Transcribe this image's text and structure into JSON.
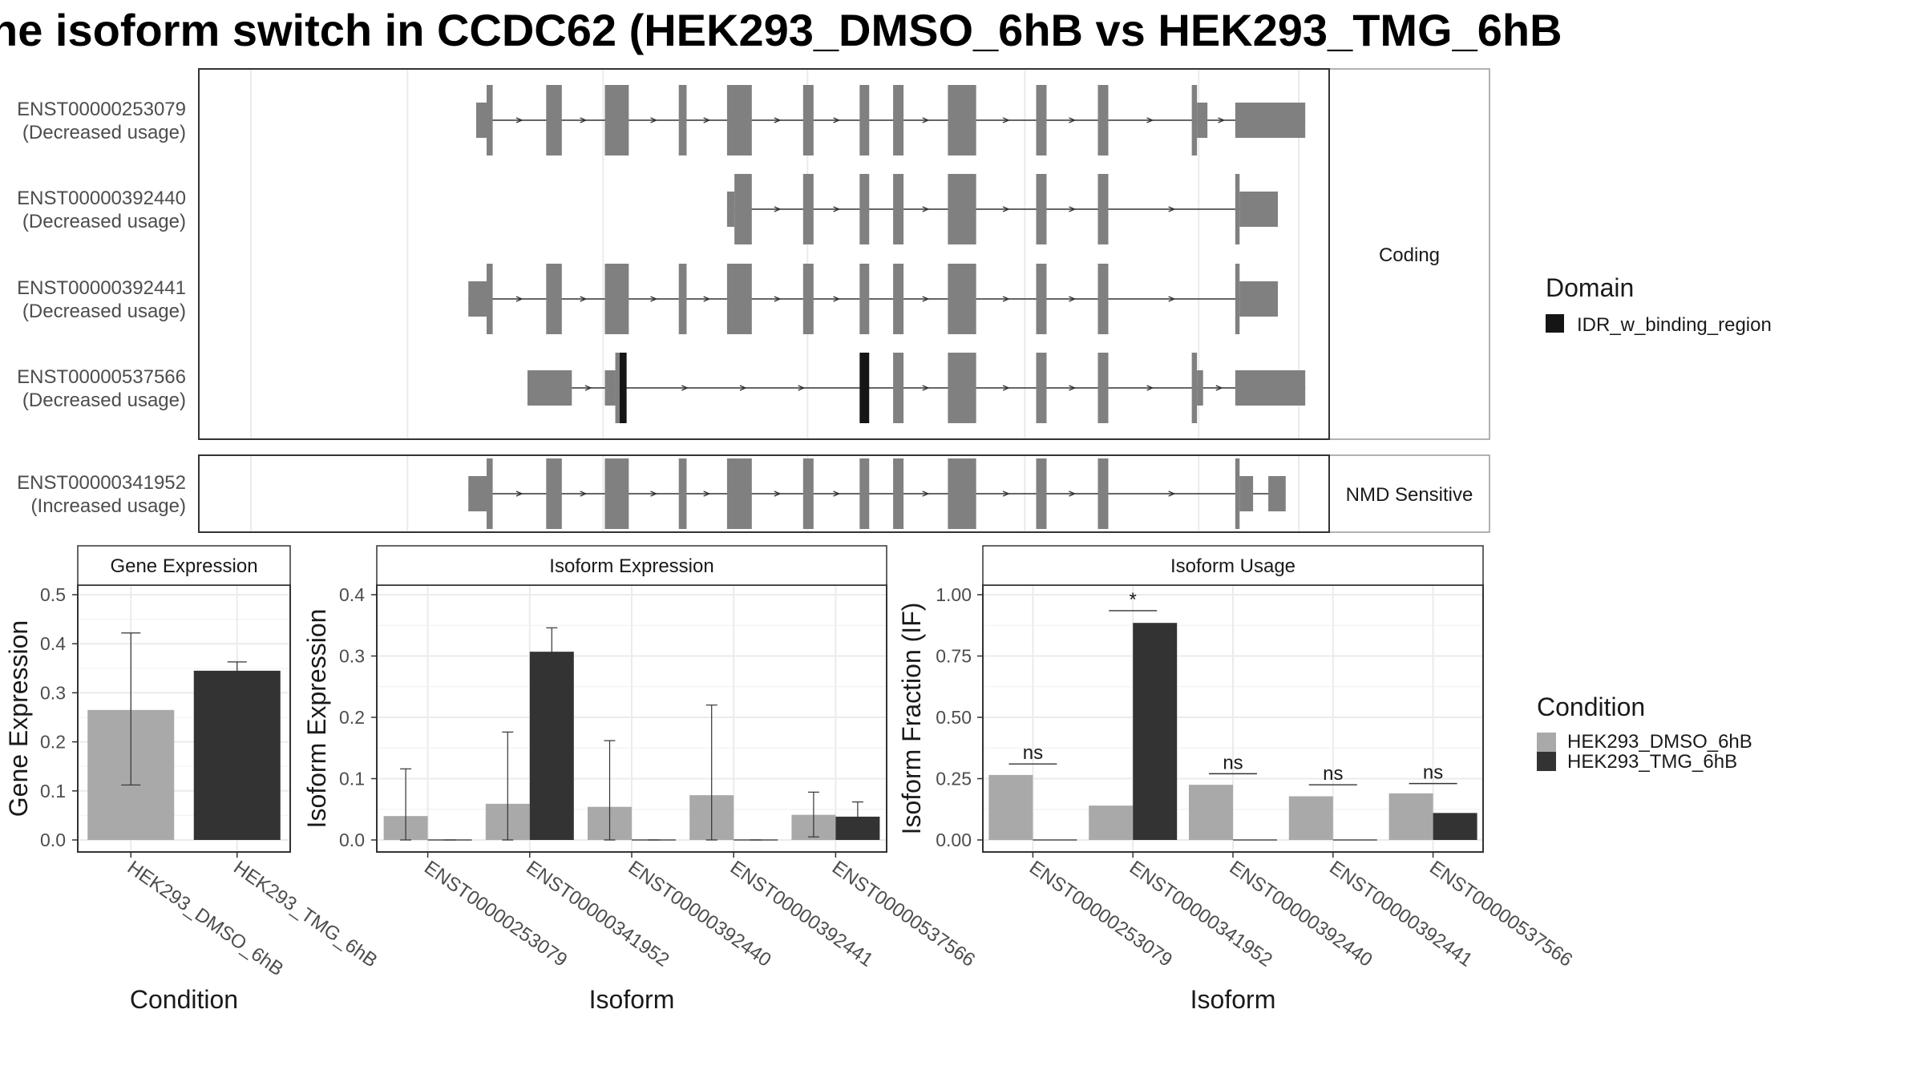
{
  "title": "he isoform switch in CCDC62 (HEK293_DMSO_6hB vs HEK293_TMG_6hB",
  "colors": {
    "exon": "#808080",
    "domain": "#151515",
    "dmso": "#a9a9a9",
    "tmg": "#333333",
    "grid": "#ebebeb",
    "panel_border": "#333333",
    "strip_fill": "#ffffff",
    "strip_border": "#999999",
    "text": "#1a1a1a",
    "axis_text": "#4d4d4d"
  },
  "structure": {
    "facets": [
      "Coding",
      "NMD Sensitive"
    ],
    "domain_legend": {
      "title": "Domain",
      "items": [
        "IDR_w_binding_region"
      ]
    },
    "transcripts": [
      {
        "id": "ENST00000253079",
        "note": "(Decreased usage)",
        "facet": "Coding",
        "exons": [
          [
            63.8,
            66.2,
            "n"
          ],
          [
            66.2,
            67.6,
            "c"
          ],
          [
            79.9,
            83.5,
            "c"
          ],
          [
            93.4,
            98.9,
            "c"
          ],
          [
            110.4,
            112.2,
            "c"
          ],
          [
            121.5,
            127.2,
            "c"
          ],
          [
            139.0,
            141.4,
            "c"
          ],
          [
            152.0,
            154.2,
            "c"
          ],
          [
            159.7,
            162.1,
            "c"
          ],
          [
            172.3,
            178.8,
            "c"
          ],
          [
            192.6,
            195.0,
            "c"
          ],
          [
            206.8,
            209.2,
            "c"
          ],
          [
            228.4,
            229.6,
            "c"
          ],
          [
            229.6,
            232.0,
            "n"
          ],
          [
            238.4,
            254.5,
            "n"
          ]
        ]
      },
      {
        "id": "ENST00000392440",
        "note": "(Decreased usage)",
        "facet": "Coding",
        "exons": [
          [
            121.5,
            123.2,
            "n"
          ],
          [
            123.2,
            127.2,
            "c"
          ],
          [
            139.0,
            141.4,
            "c"
          ],
          [
            152.0,
            154.2,
            "c"
          ],
          [
            159.7,
            162.1,
            "c"
          ],
          [
            172.3,
            178.8,
            "c"
          ],
          [
            192.6,
            195.0,
            "c"
          ],
          [
            206.8,
            209.2,
            "c"
          ],
          [
            238.4,
            239.4,
            "c"
          ],
          [
            239.4,
            248.2,
            "n"
          ]
        ]
      },
      {
        "id": "ENST00000392441",
        "note": "(Decreased usage)",
        "facet": "Coding",
        "exons": [
          [
            62.0,
            66.2,
            "n"
          ],
          [
            66.2,
            67.6,
            "c"
          ],
          [
            79.9,
            83.5,
            "c"
          ],
          [
            93.4,
            98.9,
            "c"
          ],
          [
            110.4,
            112.2,
            "c"
          ],
          [
            121.5,
            127.2,
            "c"
          ],
          [
            139.0,
            141.4,
            "c"
          ],
          [
            152.0,
            154.2,
            "c"
          ],
          [
            159.7,
            162.1,
            "c"
          ],
          [
            172.3,
            178.8,
            "c"
          ],
          [
            192.6,
            195.0,
            "c"
          ],
          [
            206.8,
            209.2,
            "c"
          ],
          [
            238.4,
            239.4,
            "c"
          ],
          [
            239.4,
            248.2,
            "n"
          ]
        ]
      },
      {
        "id": "ENST00000537566",
        "note": "(Decreased usage)",
        "facet": "Coding",
        "exons": [
          [
            75.6,
            85.8,
            "n"
          ],
          [
            93.4,
            95.8,
            "n"
          ],
          [
            95.8,
            96.8,
            "c"
          ],
          [
            96.8,
            98.4,
            "d"
          ],
          [
            152.0,
            154.2,
            "d"
          ],
          [
            159.7,
            162.1,
            "c"
          ],
          [
            172.3,
            178.8,
            "c"
          ],
          [
            192.6,
            195.0,
            "c"
          ],
          [
            206.8,
            209.2,
            "c"
          ],
          [
            228.4,
            229.6,
            "c"
          ],
          [
            229.6,
            231.0,
            "n"
          ],
          [
            238.4,
            254.5,
            "n"
          ]
        ]
      },
      {
        "id": "ENST00000341952",
        "note": "(Increased usage)",
        "facet": "NMD Sensitive",
        "exons": [
          [
            62.0,
            66.2,
            "n"
          ],
          [
            66.2,
            67.6,
            "c"
          ],
          [
            79.9,
            83.5,
            "c"
          ],
          [
            93.4,
            98.9,
            "c"
          ],
          [
            110.4,
            112.2,
            "c"
          ],
          [
            121.5,
            127.2,
            "c"
          ],
          [
            139.0,
            141.4,
            "c"
          ],
          [
            152.0,
            154.2,
            "c"
          ],
          [
            159.7,
            162.1,
            "c"
          ],
          [
            172.3,
            178.8,
            "c"
          ],
          [
            192.6,
            195.0,
            "c"
          ],
          [
            206.8,
            209.2,
            "c"
          ],
          [
            238.4,
            239.4,
            "c"
          ],
          [
            239.4,
            242.5,
            "n"
          ],
          [
            246.0,
            250.0,
            "n"
          ]
        ]
      }
    ]
  },
  "chart_data": [
    {
      "type": "bar",
      "panel": "Gene Expression",
      "xlabel": "Condition",
      "ylabel": "Gene Expression",
      "categories": [
        "HEK293_DMSO_6hB",
        "HEK293_TMG_6hB"
      ],
      "values": [
        0.265,
        0.345
      ],
      "errors": [
        [
          0.112,
          0.422
        ],
        [
          0.327,
          0.363
        ]
      ],
      "ylim": [
        0,
        0.5
      ],
      "yticks": [
        0.0,
        0.1,
        0.2,
        0.3,
        0.4,
        0.5
      ],
      "ytick_labels": [
        "0.0",
        "0.1",
        "0.2",
        "0.3",
        "0.4",
        "0.5"
      ]
    },
    {
      "type": "bar",
      "panel": "Isoform Expression",
      "xlabel": "Isoform",
      "ylabel": "Isoform Expression",
      "categories": [
        "ENST00000253079",
        "ENST00000341952",
        "ENST00000392440",
        "ENST00000392441",
        "ENST00000537566"
      ],
      "series": [
        {
          "name": "HEK293_DMSO_6hB",
          "values": [
            0.039,
            0.059,
            0.054,
            0.073,
            0.041
          ],
          "errors": [
            [
              0.0,
              0.116
            ],
            [
              0.0,
              0.176
            ],
            [
              0.0,
              0.162
            ],
            [
              0.0,
              0.22
            ],
            [
              0.005,
              0.078
            ]
          ]
        },
        {
          "name": "HEK293_TMG_6hB",
          "values": [
            0.0,
            0.307,
            0.0,
            0.0,
            0.038
          ],
          "errors": [
            [
              0.0,
              0.0
            ],
            [
              0.268,
              0.346
            ],
            [
              0.0,
              0.0
            ],
            [
              0.0,
              0.0
            ],
            [
              0.015,
              0.062
            ]
          ]
        }
      ],
      "ylim": [
        0,
        0.4
      ],
      "yticks": [
        0.0,
        0.1,
        0.2,
        0.3,
        0.4
      ],
      "ytick_labels": [
        "0.0",
        "0.1",
        "0.2",
        "0.3",
        "0.4"
      ]
    },
    {
      "type": "bar",
      "panel": "Isoform Usage",
      "xlabel": "Isoform",
      "ylabel": "Isoform Fraction (IF)",
      "categories": [
        "ENST00000253079",
        "ENST00000341952",
        "ENST00000392440",
        "ENST00000392441",
        "ENST00000537566"
      ],
      "series": [
        {
          "name": "HEK293_DMSO_6hB",
          "values": [
            0.265,
            0.14,
            0.225,
            0.178,
            0.19
          ]
        },
        {
          "name": "HEK293_TMG_6hB",
          "values": [
            0.0,
            0.885,
            0.0,
            0.0,
            0.11
          ]
        }
      ],
      "significance": [
        "ns",
        "*",
        "ns",
        "ns",
        "ns"
      ],
      "significance_y": [
        0.31,
        0.935,
        0.27,
        0.225,
        0.23
      ],
      "ylim": [
        0,
        1.0
      ],
      "yticks": [
        0.0,
        0.25,
        0.5,
        0.75,
        1.0
      ],
      "ytick_labels": [
        "0.00",
        "0.25",
        "0.50",
        "0.75",
        "1.00"
      ]
    }
  ],
  "condition_legend": {
    "title": "Condition",
    "items": [
      "HEK293_DMSO_6hB",
      "HEK293_TMG_6hB"
    ]
  }
}
